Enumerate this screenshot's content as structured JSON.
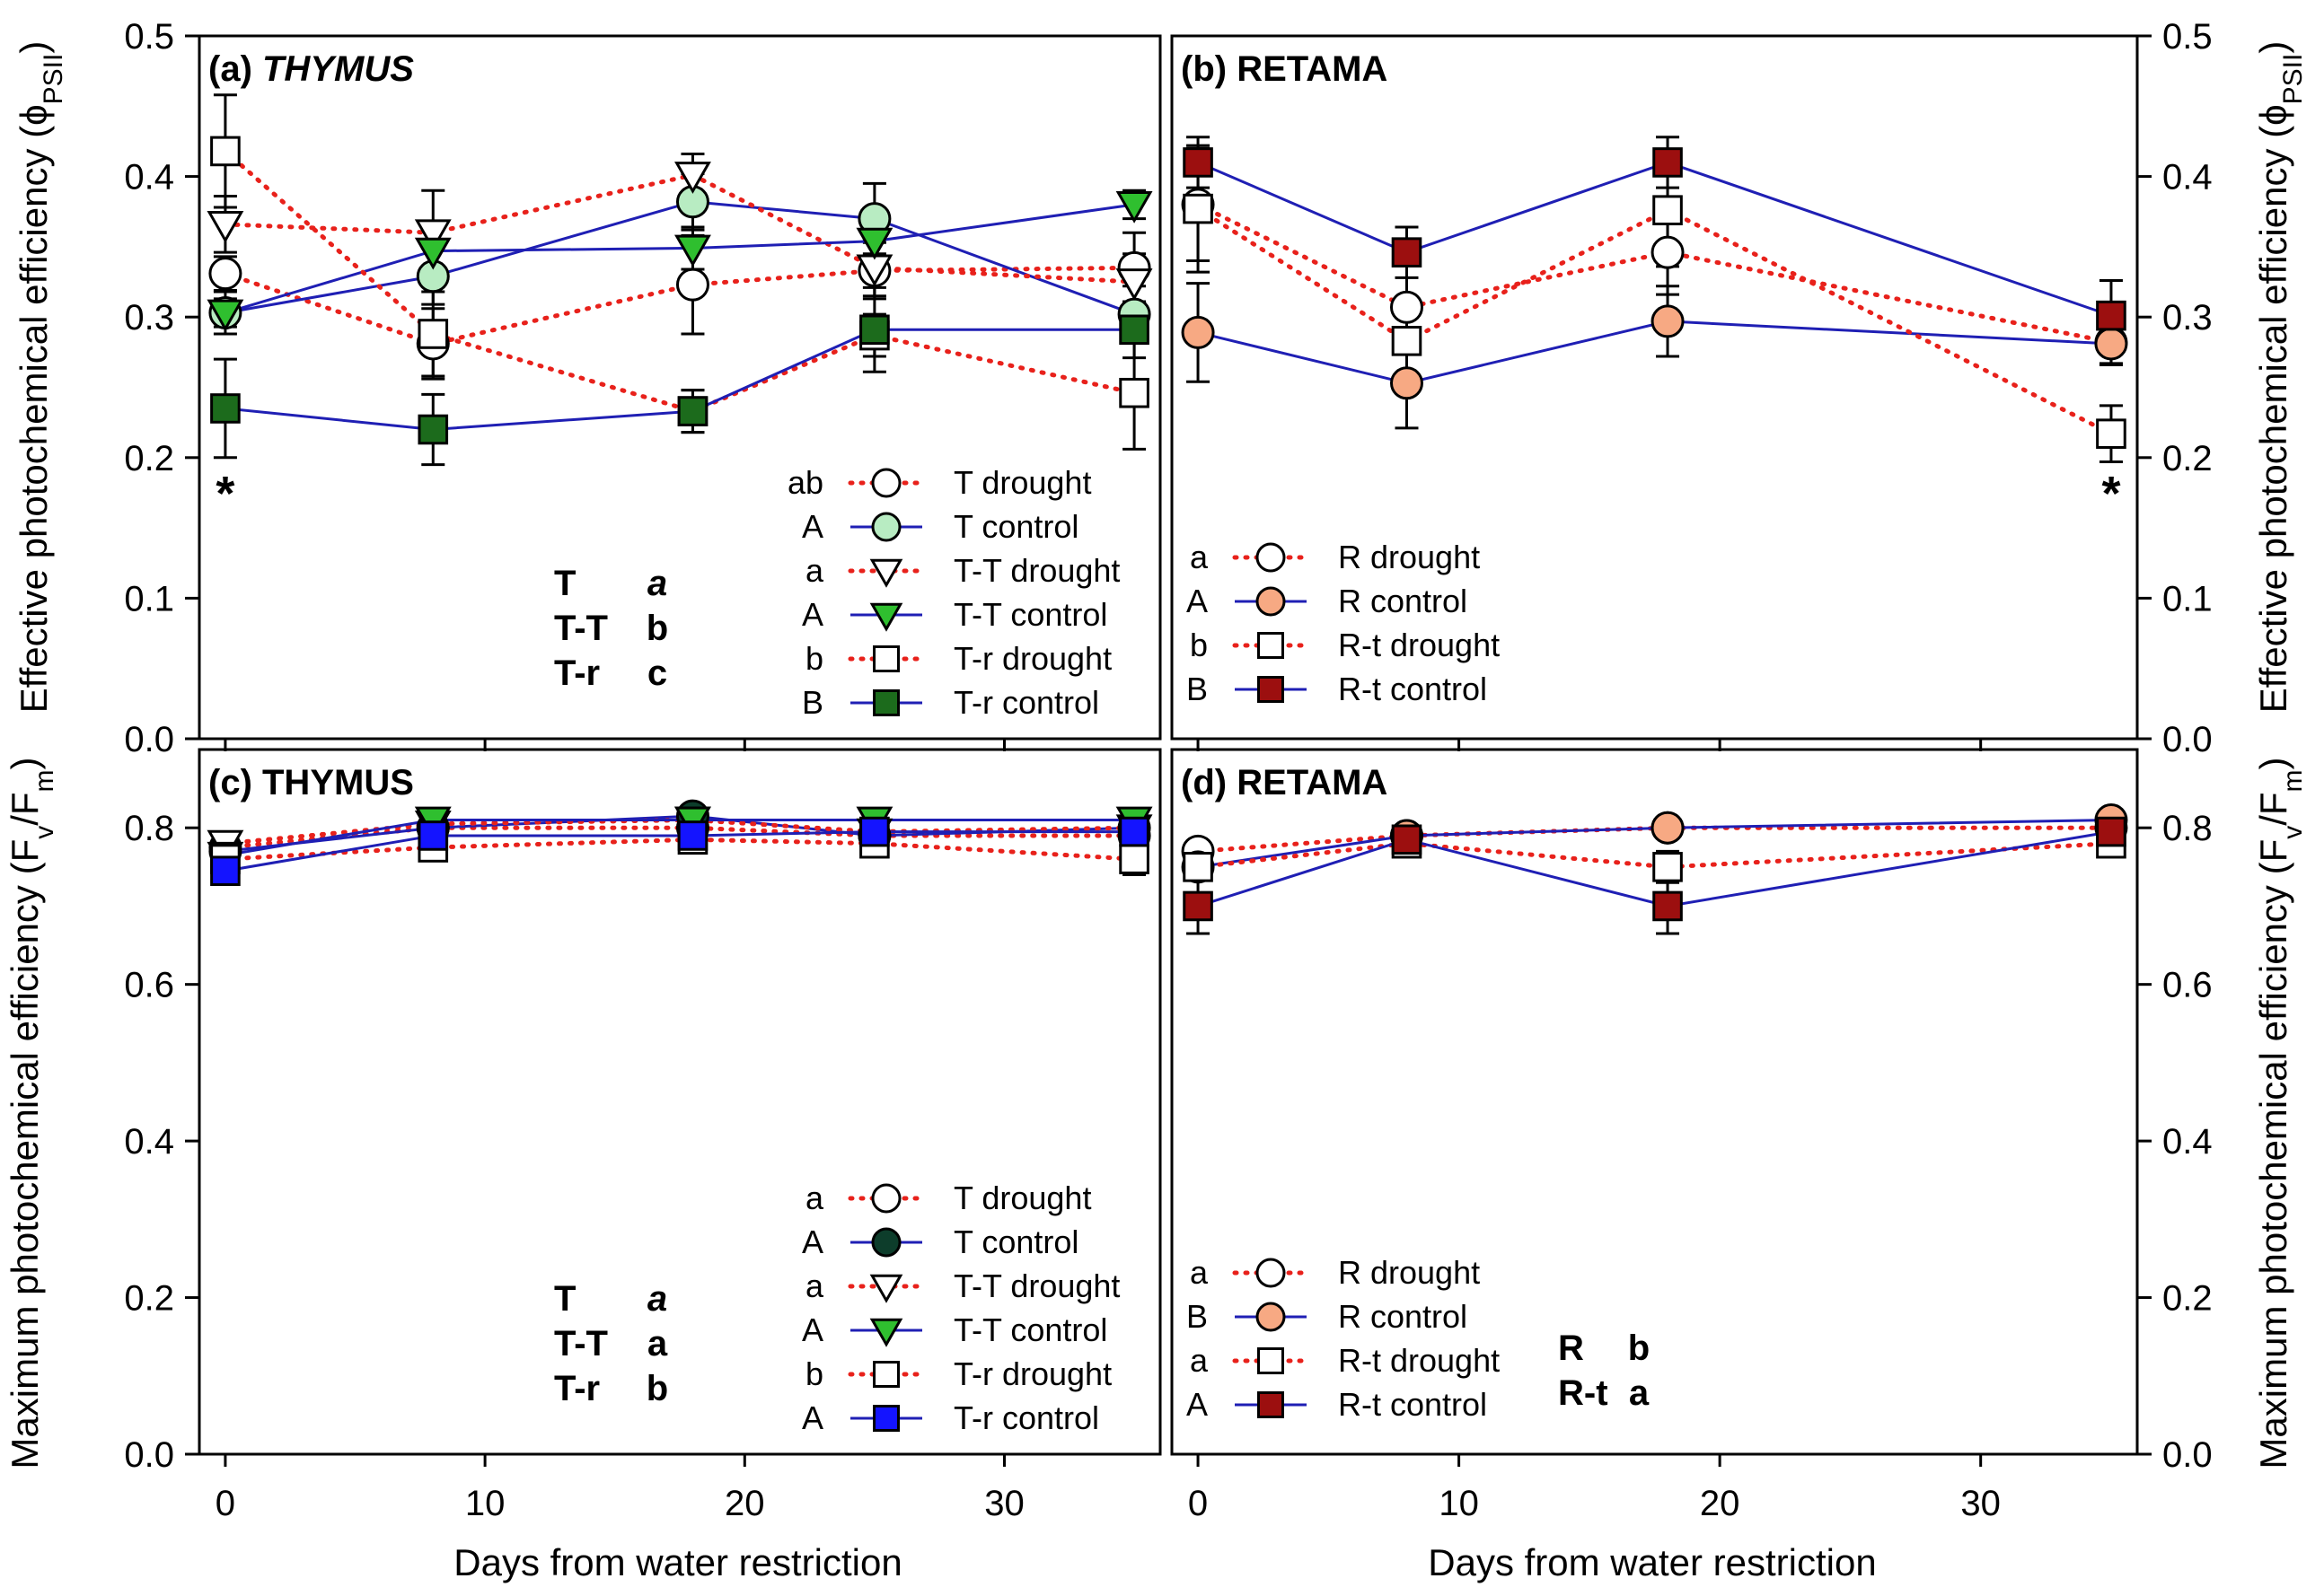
{
  "colors": {
    "drought_line": "#e8211b",
    "control_line": "#1f1fb4",
    "thymus_control_fill_a": "#b8ecc2",
    "thymus_tt_control_fill": "#2fbf2f",
    "thymus_tr_control_fill_a": "#1c6b1c",
    "thymus_control_fill_c": "#0d3d2b",
    "thymus_tr_control_fill_c": "#1414ff",
    "retama_control_fill": "#f7a983",
    "retama_rt_control_fill": "#9c0f0f",
    "open_fill": "#ffffff"
  },
  "x_axis": {
    "label": "Days from water restriction",
    "ticks": [
      0,
      10,
      20,
      30
    ],
    "range": [
      -1,
      36
    ]
  },
  "y_axes": {
    "top_label_text": "Effective photochemical efficiency (",
    "top_label_symbol": "ϕ",
    "top_label_sub": "PSII",
    "top_label_close": ")",
    "top_ticks": [
      "0.0",
      "0.1",
      "0.2",
      "0.3",
      "0.4",
      "0.5"
    ],
    "top_range": [
      0,
      0.5
    ],
    "bottom_label_text": "Maximum photochemical efficiency (F",
    "bottom_label_sub1": "v",
    "bottom_label_mid": "/F",
    "bottom_label_sub2": "m",
    "bottom_label_close": ")",
    "bottom_ticks": [
      "0.0",
      "0.2",
      "0.4",
      "0.6",
      "0.8"
    ],
    "bottom_range": [
      0,
      0.9
    ]
  },
  "chart_data": [
    {
      "panel": "a",
      "type": "line",
      "title_prefix": "(a) ",
      "title_name": "THYMUS",
      "title_italic": true,
      "xlabel": "",
      "ylabel": "Effective photochemical efficiency (ϕPSII)",
      "ylim": [
        0,
        0.5
      ],
      "series": [
        {
          "name": "T drought",
          "letter": "ab",
          "marker": "circle",
          "fill": "open",
          "line": "dotted",
          "x": [
            0,
            8,
            18,
            25,
            35
          ],
          "y": [
            0.331,
            0.281,
            0.323,
            0.333,
            0.335
          ],
          "err": [
            0.012,
            0.025,
            0.035,
            0.02,
            0.025
          ]
        },
        {
          "name": "T control",
          "letter": "A",
          "marker": "circle",
          "fill": "thymus_control_fill_a",
          "line": "solid",
          "x": [
            0,
            8,
            18,
            25,
            35
          ],
          "y": [
            0.303,
            0.329,
            0.382,
            0.37,
            0.302
          ],
          "err": [
            0.015,
            0.02,
            0.02,
            0.025,
            0.02
          ]
        },
        {
          "name": "T-T drought",
          "letter": "a",
          "marker": "tri-down",
          "fill": "open",
          "line": "dotted",
          "x": [
            0,
            8,
            18,
            25,
            35
          ],
          "y": [
            0.366,
            0.36,
            0.401,
            0.335,
            0.325
          ],
          "err": [
            0.02,
            0.03,
            0.015,
            0.02,
            0.02
          ]
        },
        {
          "name": "T-T control",
          "letter": "A",
          "marker": "tri-down",
          "fill": "thymus_tt_control_fill",
          "line": "solid",
          "x": [
            0,
            8,
            18,
            25,
            35
          ],
          "y": [
            0.303,
            0.347,
            0.349,
            0.354,
            0.38
          ],
          "err": [
            0.01,
            0.02,
            0.015,
            0.01,
            0.01
          ]
        },
        {
          "name": "T-r drought",
          "letter": "b",
          "marker": "square",
          "fill": "open",
          "line": "dotted",
          "x": [
            0,
            8,
            18,
            25,
            35
          ],
          "y": [
            0.418,
            0.288,
            0.233,
            0.287,
            0.246
          ],
          "err": [
            0.04,
            0.03,
            0.015,
            0.015,
            0.04
          ]
        },
        {
          "name": "T-r control",
          "letter": "B",
          "marker": "square",
          "fill": "thymus_tr_control_fill_a",
          "line": "solid",
          "x": [
            0,
            8,
            18,
            25,
            35
          ],
          "y": [
            0.235,
            0.22,
            0.233,
            0.291,
            0.291
          ],
          "err": [
            0.035,
            0.025,
            0.015,
            0.03,
            0.02
          ]
        }
      ],
      "legend": "bottom-right",
      "stats": [
        [
          "T",
          "a"
        ],
        [
          "T-T",
          "b"
        ],
        [
          "T-r",
          "c"
        ]
      ],
      "stats_first_italic": true,
      "stars_at_x": [
        0
      ]
    },
    {
      "panel": "b",
      "type": "line",
      "title_prefix": "(b) ",
      "title_name": "RETAMA",
      "title_italic": false,
      "ylim": [
        0,
        0.5
      ],
      "series": [
        {
          "name": "R drought",
          "letter": "a",
          "marker": "circle",
          "fill": "open",
          "line": "dotted",
          "x": [
            0,
            8,
            18,
            35
          ],
          "y": [
            0.38,
            0.307,
            0.346,
            0.282
          ],
          "err": [
            0.04,
            0.03,
            0.03,
            0.015
          ]
        },
        {
          "name": "R control",
          "letter": "A",
          "marker": "circle",
          "fill": "retama_control_fill",
          "line": "solid",
          "x": [
            0,
            8,
            18,
            35
          ],
          "y": [
            0.289,
            0.253,
            0.297,
            0.281
          ],
          "err": [
            0.035,
            0.032,
            0.025,
            0.015
          ]
        },
        {
          "name": "R-t drought",
          "letter": "b",
          "marker": "square",
          "fill": "open",
          "line": "dotted",
          "x": [
            0,
            8,
            18,
            35
          ],
          "y": [
            0.377,
            0.283,
            0.376,
            0.217
          ],
          "err": [
            0.045,
            0.025,
            0.04,
            0.02
          ]
        },
        {
          "name": "R-t control",
          "letter": "B",
          "marker": "square",
          "fill": "retama_rt_control_fill",
          "line": "solid",
          "x": [
            0,
            8,
            18,
            35
          ],
          "y": [
            0.41,
            0.346,
            0.41,
            0.301
          ],
          "err": [
            0.018,
            0.018,
            0.018,
            0.025
          ]
        }
      ],
      "legend": "bottom-left",
      "stats": [],
      "stars_at_x": [
        35
      ]
    },
    {
      "panel": "c",
      "type": "line",
      "title_prefix": "(c) ",
      "title_name": "THYMUS",
      "title_italic": false,
      "xlabel": "Days from water restriction",
      "ylabel": "Maximum photochemical efficiency (Fv/Fm)",
      "ylim": [
        0,
        0.9
      ],
      "series": [
        {
          "name": "T drought",
          "letter": "a",
          "marker": "circle",
          "fill": "open",
          "line": "dotted",
          "x": [
            0,
            8,
            18,
            25,
            35
          ],
          "y": [
            0.775,
            0.8,
            0.8,
            0.79,
            0.79
          ],
          "err": [
            0.015,
            0.01,
            0.01,
            0.01,
            0.015
          ]
        },
        {
          "name": "T control",
          "letter": "A",
          "marker": "circle",
          "fill": "thymus_control_fill_c",
          "line": "solid",
          "x": [
            0,
            8,
            18,
            25,
            35
          ],
          "y": [
            0.77,
            0.8,
            0.815,
            0.79,
            0.8
          ],
          "err": [
            0.01,
            0.01,
            0.01,
            0.01,
            0.01
          ]
        },
        {
          "name": "T-T drought",
          "letter": "a",
          "marker": "tri-down",
          "fill": "open",
          "line": "dotted",
          "x": [
            0,
            8,
            18,
            25,
            35
          ],
          "y": [
            0.78,
            0.805,
            0.81,
            0.795,
            0.8
          ],
          "err": [
            0.015,
            0.01,
            0.01,
            0.01,
            0.01
          ]
        },
        {
          "name": "T-T control",
          "letter": "A",
          "marker": "tri-down",
          "fill": "thymus_tt_control_fill",
          "line": "solid",
          "x": [
            0,
            8,
            18,
            25,
            35
          ],
          "y": [
            0.765,
            0.81,
            0.81,
            0.81,
            0.81
          ],
          "err": [
            0.01,
            0.01,
            0.01,
            0.01,
            0.01
          ]
        },
        {
          "name": "T-r drought",
          "letter": "b",
          "marker": "square",
          "fill": "open",
          "line": "dotted",
          "x": [
            0,
            8,
            18,
            25,
            35
          ],
          "y": [
            0.76,
            0.775,
            0.785,
            0.78,
            0.76
          ],
          "err": [
            0.015,
            0.015,
            0.015,
            0.015,
            0.02
          ]
        },
        {
          "name": "T-r control",
          "letter": "A",
          "marker": "square",
          "fill": "thymus_tr_control_fill_c",
          "line": "solid",
          "x": [
            0,
            8,
            18,
            25,
            35
          ],
          "y": [
            0.745,
            0.79,
            0.79,
            0.795,
            0.795
          ],
          "err": [
            0.015,
            0.01,
            0.01,
            0.01,
            0.01
          ]
        }
      ],
      "legend": "bottom-right",
      "stats": [
        [
          "T",
          "a"
        ],
        [
          "T-T",
          "a"
        ],
        [
          "T-r",
          "b"
        ]
      ],
      "stats_first_italic": true,
      "stars_at_x": []
    },
    {
      "panel": "d",
      "type": "line",
      "title_prefix": "(d) ",
      "title_name": "RETAMA",
      "title_italic": false,
      "xlabel": "Days from water restriction",
      "ylim": [
        0,
        0.9
      ],
      "series": [
        {
          "name": "R drought",
          "letter": "a",
          "marker": "circle",
          "fill": "open",
          "line": "dotted",
          "x": [
            0,
            8,
            18,
            35
          ],
          "y": [
            0.77,
            0.79,
            0.8,
            0.8
          ],
          "err": [
            0.01,
            0.01,
            0.01,
            0.01
          ]
        },
        {
          "name": "R control",
          "letter": "B",
          "marker": "circle",
          "fill": "retama_control_fill",
          "line": "solid",
          "x": [
            0,
            8,
            18,
            35
          ],
          "y": [
            0.75,
            0.79,
            0.8,
            0.81
          ],
          "err": [
            0.015,
            0.01,
            0.01,
            0.01
          ]
        },
        {
          "name": "R-t drought",
          "letter": "a",
          "marker": "square",
          "fill": "open",
          "line": "dotted",
          "x": [
            0,
            8,
            18,
            35
          ],
          "y": [
            0.75,
            0.78,
            0.75,
            0.78
          ],
          "err": [
            0.015,
            0.01,
            0.02,
            0.01
          ]
        },
        {
          "name": "R-t control",
          "letter": "A",
          "marker": "square",
          "fill": "retama_rt_control_fill",
          "line": "solid",
          "x": [
            0,
            8,
            18,
            35
          ],
          "y": [
            0.7,
            0.785,
            0.7,
            0.795
          ],
          "err": [
            0.035,
            0.01,
            0.035,
            0.01
          ]
        }
      ],
      "legend": "bottom-left",
      "stats": [
        [
          "R",
          "b"
        ],
        [
          "R-t",
          "a"
        ]
      ],
      "stats_first_italic": false,
      "stars_at_x": []
    }
  ]
}
